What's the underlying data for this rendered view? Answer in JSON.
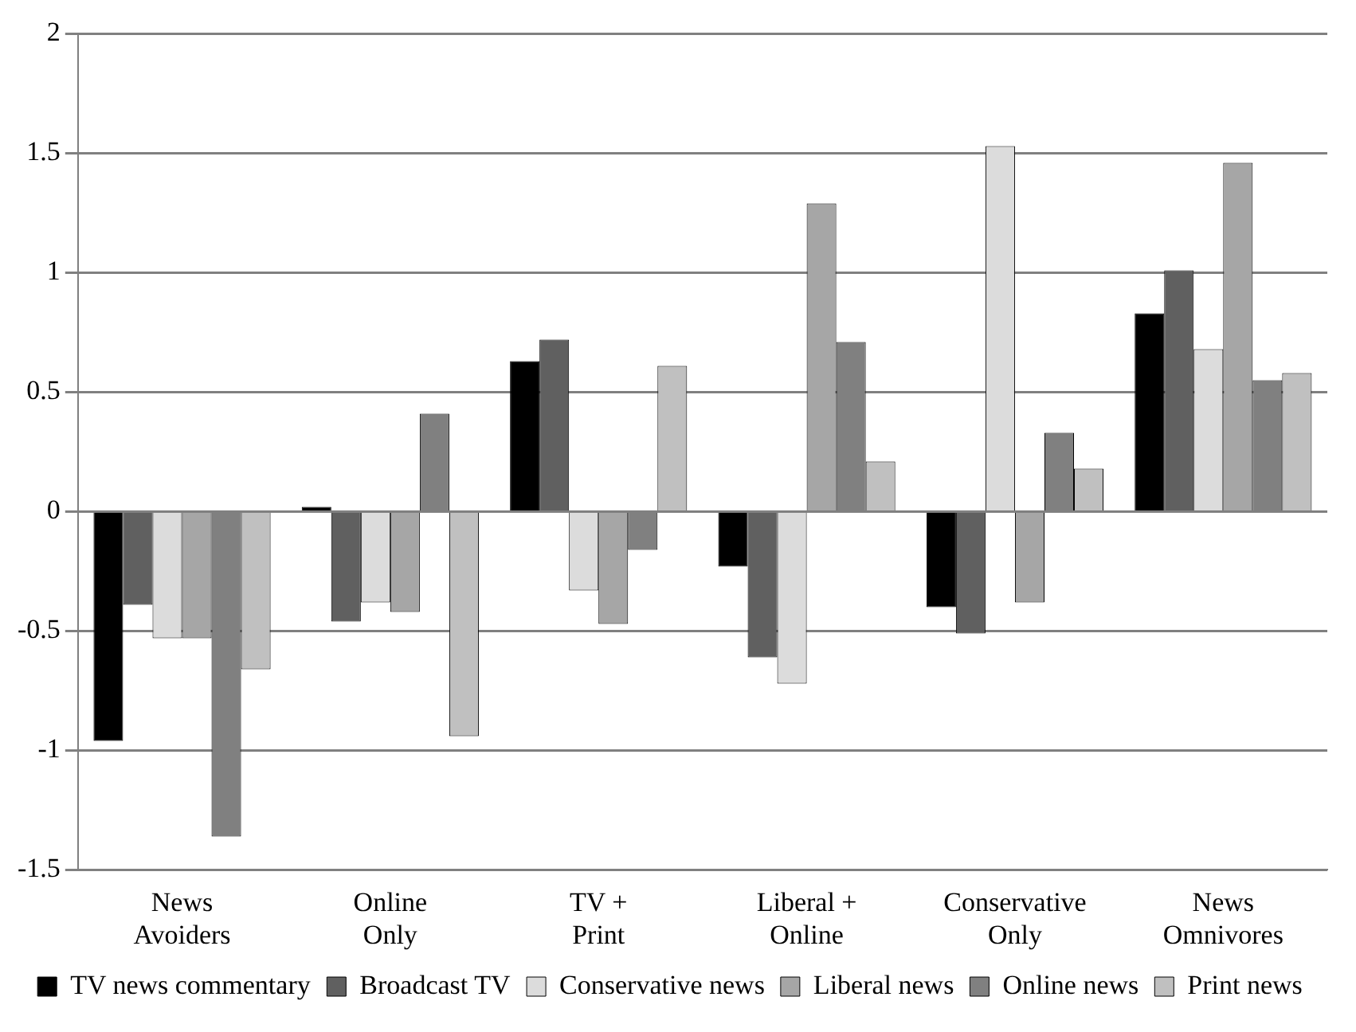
{
  "chart_data": {
    "type": "bar",
    "categories": [
      "News Avoiders",
      "Online Only",
      "TV + Print",
      "Liberal + Online",
      "Conservative Only",
      "News Omnivores"
    ],
    "series": [
      {
        "name": "TV news commentary",
        "color": "#000000",
        "values": [
          -0.96,
          0.02,
          0.63,
          -0.23,
          -0.4,
          0.83
        ]
      },
      {
        "name": "Broadcast TV",
        "color": "#606060",
        "values": [
          -0.39,
          -0.46,
          0.72,
          -0.61,
          -0.51,
          1.01
        ]
      },
      {
        "name": "Conservative news",
        "color": "#dcdcdc",
        "values": [
          -0.53,
          -0.38,
          -0.33,
          -0.72,
          1.53,
          0.68
        ]
      },
      {
        "name": "Liberal news",
        "color": "#a6a6a6",
        "values": [
          -0.53,
          -0.42,
          -0.47,
          1.29,
          -0.38,
          1.46
        ]
      },
      {
        "name": "Online news",
        "color": "#808080",
        "values": [
          -1.36,
          0.41,
          -0.16,
          0.71,
          0.33,
          0.55
        ]
      },
      {
        "name": "Print news",
        "color": "#c0c0c0",
        "values": [
          -0.66,
          -0.94,
          0.61,
          0.21,
          0.18,
          0.58
        ]
      }
    ],
    "ylim": [
      -1.5,
      2
    ],
    "yticks": [
      -1.5,
      -1,
      -0.5,
      0,
      0.5,
      1,
      1.5,
      2
    ],
    "grid": "y",
    "legend": "bottom"
  }
}
